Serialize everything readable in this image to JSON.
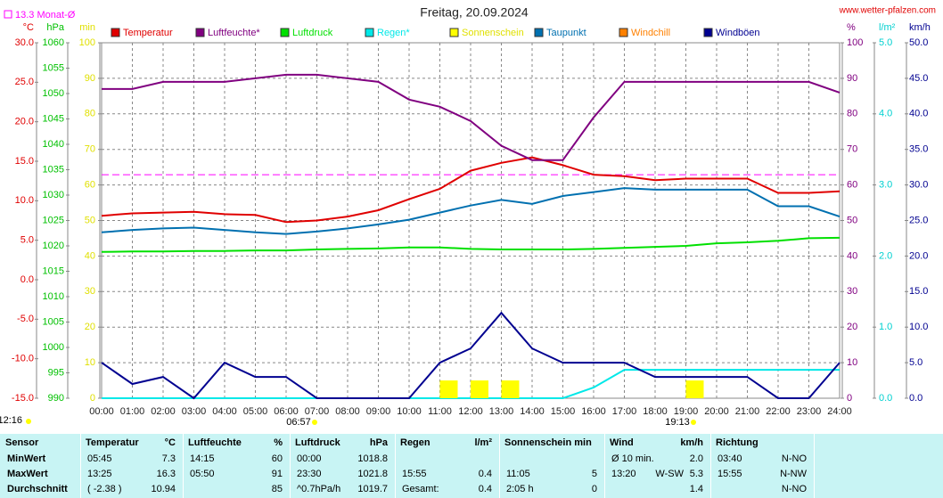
{
  "chart_data": {
    "type": "line",
    "title": "Freitag, 20.09.2024",
    "source": "www.wetter-pfalzen.com",
    "monthly_avg": {
      "value": 13.3,
      "label": "13.3 Monat-Ø",
      "color": "#ff00ff"
    },
    "x": [
      0,
      1,
      2,
      3,
      4,
      5,
      6,
      7,
      8,
      9,
      10,
      11,
      12,
      13,
      14,
      15,
      16,
      17,
      18,
      19,
      20,
      21,
      22,
      23,
      24
    ],
    "xlim": [
      0,
      24
    ],
    "xticks": [
      {
        "value": 0,
        "label": "00:00"
      },
      {
        "value": 1,
        "label": "01:00"
      },
      {
        "value": 2,
        "label": "02:00"
      },
      {
        "value": 3,
        "label": "03:00"
      },
      {
        "value": 4,
        "label": "04:00"
      },
      {
        "value": 5,
        "label": "05:00"
      },
      {
        "value": 6,
        "label": "06:00"
      },
      {
        "value": 7,
        "label": "07:00"
      },
      {
        "value": 8,
        "label": "08:00"
      },
      {
        "value": 9,
        "label": "09:00"
      },
      {
        "value": 10,
        "label": "10:00"
      },
      {
        "value": 11,
        "label": "11:00"
      },
      {
        "value": 12,
        "label": "12:00"
      },
      {
        "value": 13,
        "label": "13:00"
      },
      {
        "value": 14,
        "label": "14:00"
      },
      {
        "value": 15,
        "label": "15:00"
      },
      {
        "value": 16,
        "label": "16:00"
      },
      {
        "value": 17,
        "label": "17:00"
      },
      {
        "value": 18,
        "label": "18:00"
      },
      {
        "value": 19,
        "label": "19:00"
      },
      {
        "value": 20,
        "label": "20:00"
      },
      {
        "value": 21,
        "label": "21:00"
      },
      {
        "value": 22,
        "label": "22:00"
      },
      {
        "value": 23,
        "label": "23:00"
      },
      {
        "value": 24,
        "label": "24:00"
      }
    ],
    "ylabel": "°C",
    "ylim": [
      -15,
      30
    ],
    "yticks": [
      {
        "value": -15,
        "label": "-15.0"
      },
      {
        "value": -10,
        "label": "-10.0"
      },
      {
        "value": -5,
        "label": "-5.0"
      },
      {
        "value": 0,
        "label": "0.0"
      },
      {
        "value": 5,
        "label": "5.0"
      },
      {
        "value": 10,
        "label": "10.0"
      },
      {
        "value": 15,
        "label": "15.0"
      },
      {
        "value": 20,
        "label": "20.0"
      },
      {
        "value": 25,
        "label": "25.0"
      },
      {
        "value": 30,
        "label": "30.0"
      }
    ],
    "y2label": "%",
    "y2lim": [
      0,
      100
    ],
    "y2ticks": [
      0,
      10,
      20,
      30,
      40,
      50,
      60,
      70,
      80,
      90,
      100
    ],
    "y3label": "hPa",
    "y3lim": [
      990,
      1060
    ],
    "y3ticks": [
      990,
      995,
      1000,
      1005,
      1010,
      1015,
      1020,
      1025,
      1030,
      1035,
      1040,
      1045,
      1050,
      1055,
      1060
    ],
    "y4label": "min",
    "y4lim": [
      0,
      100
    ],
    "y4ticks": [
      0,
      10,
      20,
      30,
      40,
      50,
      60,
      70,
      80,
      90,
      100
    ],
    "y5label": "l/m²",
    "y5lim": [
      0,
      5
    ],
    "y5ticks": [
      {
        "value": 0,
        "label": "0.0"
      },
      {
        "value": 1,
        "label": "1.0"
      },
      {
        "value": 2,
        "label": "2.0"
      },
      {
        "value": 3,
        "label": "3.0"
      },
      {
        "value": 4,
        "label": "4.0"
      },
      {
        "value": 5,
        "label": "5.0"
      }
    ],
    "y6label": "km/h",
    "y6lim": [
      0,
      50
    ],
    "y6ticks": [
      {
        "value": 0,
        "label": "0.0"
      },
      {
        "value": 5,
        "label": "5.0"
      },
      {
        "value": 10,
        "label": "10.0"
      },
      {
        "value": 15,
        "label": "15.0"
      },
      {
        "value": 20,
        "label": "20.0"
      },
      {
        "value": 25,
        "label": "25.0"
      },
      {
        "value": 30,
        "label": "30.0"
      },
      {
        "value": 35,
        "label": "35.0"
      },
      {
        "value": 40,
        "label": "40.0"
      },
      {
        "value": 45,
        "label": "45.0"
      },
      {
        "value": 50,
        "label": "50.0"
      }
    ],
    "grid": true,
    "series": [
      {
        "name": "Temperatur",
        "color": "#e00000",
        "axis": "y",
        "values": [
          8.1,
          8.4,
          8.5,
          8.6,
          8.3,
          8.2,
          7.3,
          7.5,
          8.0,
          8.8,
          10.2,
          11.5,
          13.8,
          14.8,
          15.5,
          14.5,
          13.3,
          13.1,
          12.6,
          12.8,
          12.8,
          12.8,
          11.0,
          11.0,
          11.2
        ]
      },
      {
        "name": "Luftfeuchte*",
        "color": "#800080",
        "axis": "y2",
        "values": [
          87,
          87,
          89,
          89,
          89,
          90,
          91,
          91,
          90,
          89,
          84,
          82,
          78,
          71,
          67,
          67,
          79,
          89,
          89,
          89,
          89,
          89,
          89,
          89,
          86
        ]
      },
      {
        "name": "Luftdruck",
        "color": "#00e000",
        "axis": "y3",
        "values": [
          1018.8,
          1018.9,
          1018.9,
          1019.0,
          1019.0,
          1019.1,
          1019.1,
          1019.3,
          1019.4,
          1019.5,
          1019.7,
          1019.7,
          1019.4,
          1019.3,
          1019.3,
          1019.3,
          1019.4,
          1019.6,
          1019.8,
          1020.0,
          1020.5,
          1020.7,
          1021.0,
          1021.5,
          1021.6
        ]
      },
      {
        "name": "Regen*",
        "color": "#00e8e8",
        "axis": "y5",
        "values": [
          0,
          0,
          0,
          0,
          0,
          0,
          0,
          0,
          0,
          0,
          0,
          0,
          0,
          0,
          0,
          0,
          0.15,
          0.4,
          0.4,
          0.4,
          0.4,
          0.4,
          0.4,
          0.4,
          0.4
        ]
      },
      {
        "name": "Sonnenschein",
        "color": "#ffff00",
        "axis": "y4",
        "kind": "bar",
        "values": [
          0,
          0,
          0,
          0,
          0,
          0,
          0,
          0,
          0,
          0,
          0,
          5,
          5,
          5,
          0,
          0,
          0,
          0,
          0,
          5,
          0,
          0,
          0,
          0,
          0
        ]
      },
      {
        "name": "Taupunkt",
        "color": "#0070b0",
        "axis": "y",
        "values": [
          6.0,
          6.3,
          6.5,
          6.6,
          6.3,
          6.0,
          5.8,
          6.1,
          6.5,
          7.0,
          7.6,
          8.5,
          9.4,
          10.1,
          9.6,
          10.6,
          11.1,
          11.6,
          11.4,
          11.4,
          11.4,
          11.4,
          9.3,
          9.3,
          8.0
        ]
      },
      {
        "name": "Windchill",
        "color": "#ff8000",
        "axis": "y",
        "values": [
          null,
          null,
          null,
          null,
          null,
          null,
          null,
          null,
          null,
          null,
          null,
          null,
          null,
          null,
          null,
          null,
          null,
          null,
          null,
          null,
          null,
          null,
          null,
          null,
          null
        ]
      },
      {
        "name": "Windböen",
        "color": "#000090",
        "axis": "y6",
        "values": [
          5,
          2,
          3,
          0,
          5,
          3,
          3,
          0,
          0,
          0,
          0,
          5,
          7,
          12,
          7,
          5,
          5,
          5,
          3,
          3,
          3,
          3,
          0,
          0,
          5
        ]
      }
    ],
    "annotations": {
      "daylength": "12:16",
      "sunrise": "06:57",
      "sunset": "19:13"
    }
  },
  "table": {
    "header": [
      {
        "title": "Sensor"
      },
      {
        "title": "Temperatur",
        "unit": "°C"
      },
      {
        "title": "Luftfeuchte",
        "unit": "%"
      },
      {
        "title": "Luftdruck",
        "unit": "hPa"
      },
      {
        "title": "Regen",
        "unit": "l/m²"
      },
      {
        "title": "Sonnenschein min"
      },
      {
        "title": "Wind",
        "unit": "km/h"
      },
      {
        "title": "Richtung"
      }
    ],
    "rows": [
      [
        {
          "left": "MinWert"
        },
        {
          "left": "05:45",
          "right": "7.3"
        },
        {
          "left": "14:15",
          "right": "60"
        },
        {
          "left": "00:00",
          "right": "1018.8"
        },
        {},
        {},
        {
          "left": "Ø 10 min.",
          "right": "2.0"
        },
        {
          "left": "03:40",
          "right": "N-NO"
        }
      ],
      [
        {
          "left": "MaxWert"
        },
        {
          "left": "13:25",
          "right": "16.3"
        },
        {
          "left": "05:50",
          "right": "91"
        },
        {
          "left": "23:30",
          "right": "1021.8"
        },
        {
          "left": "15:55",
          "right": "0.4"
        },
        {
          "left": "11:05",
          "right": "5"
        },
        {
          "left": "13:20",
          "mid": "W-SW",
          "right": "5.3"
        },
        {
          "left": "15:55",
          "right": "N-NW"
        }
      ],
      [
        {
          "left": "Durchschnitt"
        },
        {
          "left": "( -2.38 )",
          "right": "10.94"
        },
        {
          "right": "85"
        },
        {
          "left": "^0.7hPa/h",
          "right": "1019.7"
        },
        {
          "left": "Gesamt:",
          "right": "0.4"
        },
        {
          "left": "2:05 h",
          "right": "0"
        },
        {
          "right": "1.4"
        },
        {
          "right": "N-NO"
        }
      ]
    ]
  }
}
